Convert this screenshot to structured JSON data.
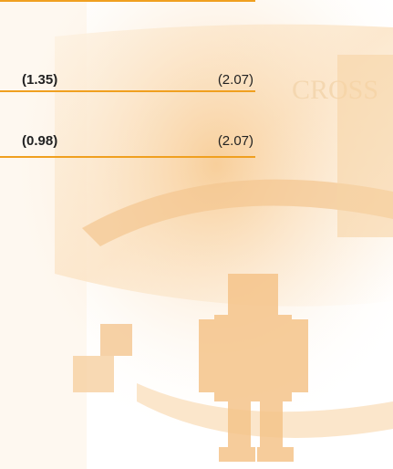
{
  "table": {
    "rows": [
      [
        "(1.35)",
        "(2.07)"
      ],
      [
        "(0.98)",
        "(2.07)"
      ]
    ]
  }
}
